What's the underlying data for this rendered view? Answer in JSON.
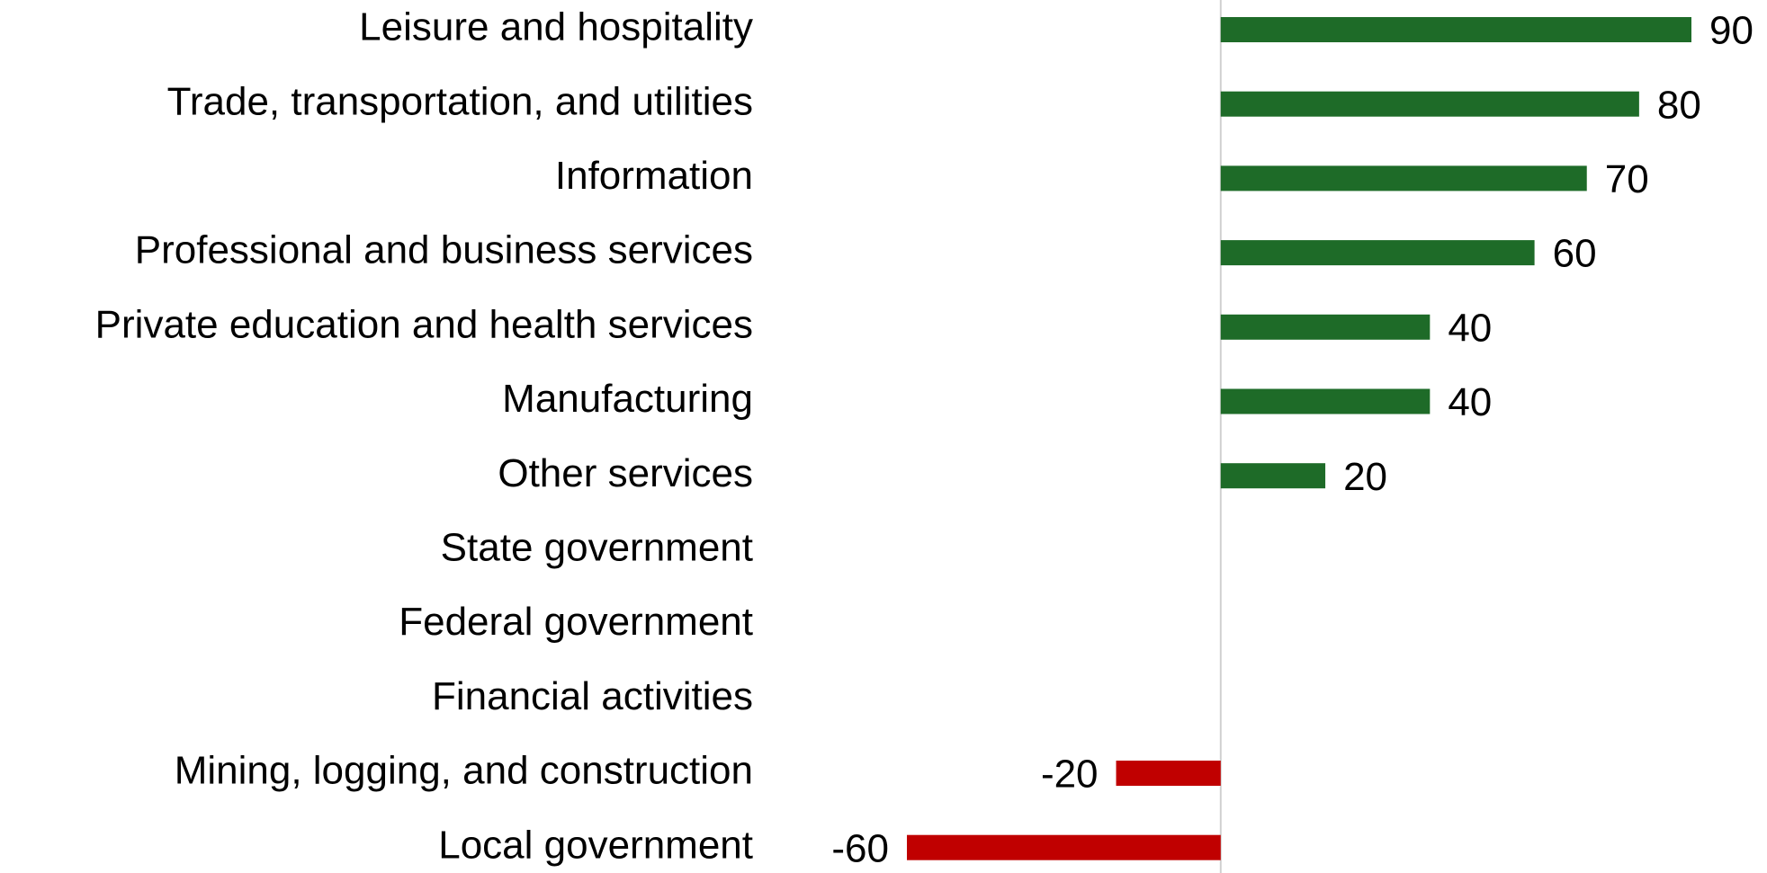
{
  "chart_data": {
    "type": "bar",
    "orientation": "horizontal",
    "categories": [
      "Leisure and hospitality",
      "Trade, transportation, and utilities",
      "Information",
      "Professional and business services",
      "Private education and health services",
      "Manufacturing",
      "Other services",
      "State government",
      "Federal government",
      "Financial activities",
      "Mining, logging, and construction",
      "Local government"
    ],
    "values": [
      90,
      80,
      70,
      60,
      40,
      40,
      20,
      0,
      0,
      0,
      -20,
      -60
    ],
    "positive_color": "#1e6b28",
    "negative_color": "#c00000",
    "xlim": [
      -60,
      90
    ]
  }
}
